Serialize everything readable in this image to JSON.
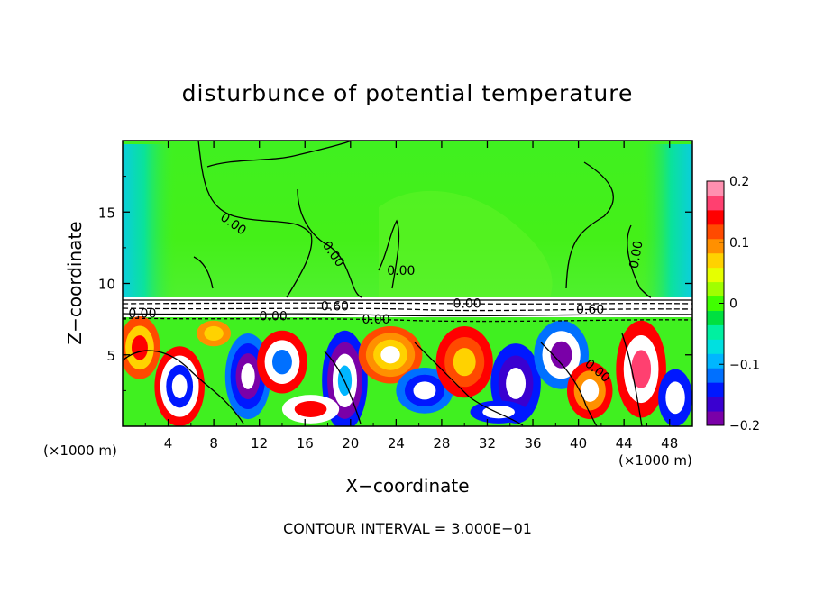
{
  "chart_data": {
    "type": "heatmap",
    "title": "disturbunce of potential temperature",
    "xlabel": "X−coordinate",
    "ylabel": "Z−coordinate",
    "x_unit": "(×1000 m)",
    "x_unit_right": "(×1000 m)",
    "xlim": [
      0,
      50
    ],
    "ylim": [
      0,
      20
    ],
    "x_ticks": [
      4,
      8,
      12,
      16,
      20,
      24,
      28,
      32,
      36,
      40,
      44,
      48
    ],
    "y_ticks": [
      5,
      10,
      15
    ],
    "colorbar": {
      "range": [
        -0.2,
        0.2
      ],
      "ticks": [
        0.2,
        0.1,
        0,
        -0.1,
        -0.2
      ],
      "tick_labels": [
        "0.2",
        "0.1",
        "0",
        "−0.1",
        "−0.2"
      ],
      "colors": [
        "#7a00a8",
        "#3a00d0",
        "#0018ff",
        "#0070ff",
        "#00b6ff",
        "#00e0e0",
        "#00f0a0",
        "#00e040",
        "#40ff00",
        "#a0ff00",
        "#e6ff00",
        "#ffd200",
        "#ff9000",
        "#ff4a00",
        "#ff0000",
        "#ff4070",
        "#ff90b0"
      ]
    },
    "contour_labels": [
      "0.00",
      "0.00",
      "0.00",
      "0.00",
      "0.00",
      "0.00",
      "0.60",
      "0.60",
      "0.00",
      "0.00",
      "0.00"
    ],
    "field_description": {
      "upper_layer_value": 0,
      "upper_layer_z_range": [
        9,
        20
      ],
      "inversion_z": 8.5,
      "lower_layer_z_range": [
        0,
        8
      ]
    },
    "footer": "CONTOUR INTERVAL = 3.000E−01"
  },
  "colors": {
    "zero_green": "#40ff00",
    "light_green": "#a8ff20",
    "cyan": "#00d8ff",
    "white_band": "#ffffff"
  }
}
